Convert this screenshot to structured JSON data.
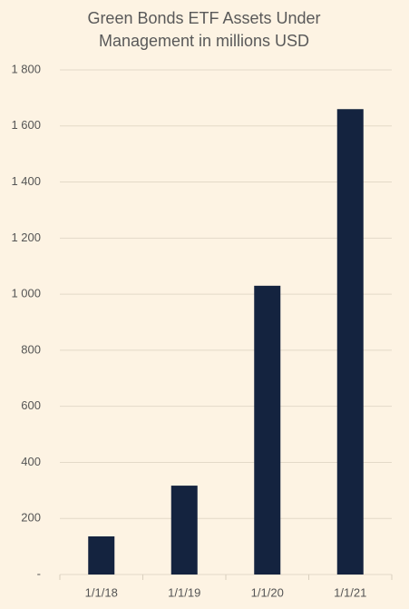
{
  "chart_data": {
    "type": "bar",
    "title": [
      "Green Bonds ETF Assets Under",
      "Management in millions USD"
    ],
    "categories": [
      "1/1/18",
      "1/1/19",
      "1/1/20",
      "1/1/21"
    ],
    "values": [
      136,
      317,
      1030,
      1660
    ],
    "color": "#14233f",
    "ylim": [
      0,
      1800
    ],
    "yticks": [
      {
        "value": 0,
        "label": "-"
      },
      200,
      400,
      600,
      800,
      {
        "value": 1000,
        "label": "1 000"
      },
      {
        "value": 1200,
        "label": "1 200"
      },
      {
        "value": 1400,
        "label": "1 400"
      },
      {
        "value": 1600,
        "label": "1 600"
      },
      {
        "value": 1800,
        "label": "1 800"
      }
    ],
    "grid": true
  }
}
